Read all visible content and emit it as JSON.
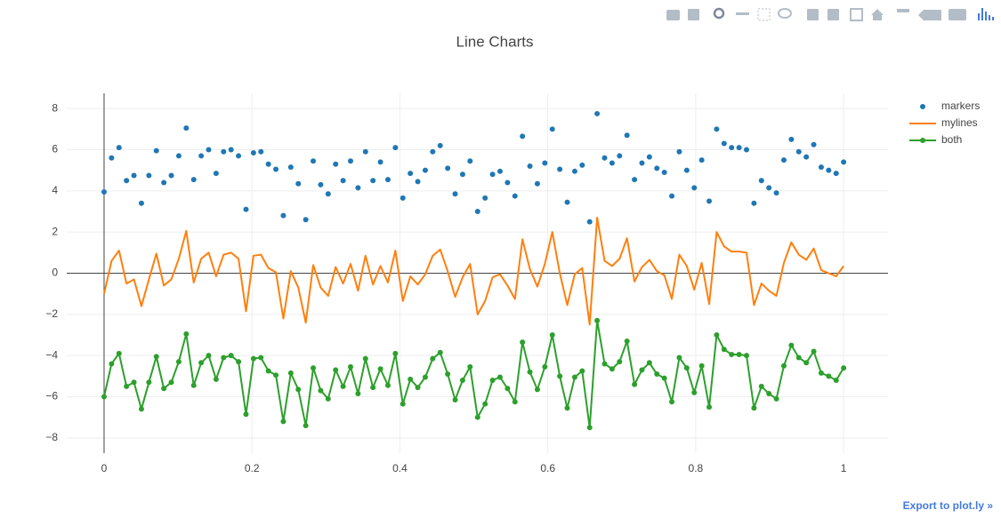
{
  "chart_data": {
    "type": "line",
    "title": "Line Charts",
    "x": [
      0,
      0.0101,
      0.0202,
      0.0303,
      0.0404,
      0.0505,
      0.0606,
      0.0707,
      0.0808,
      0.0909,
      0.101,
      0.1111,
      0.1212,
      0.1313,
      0.1414,
      0.1515,
      0.1616,
      0.1717,
      0.1818,
      0.1919,
      0.202,
      0.2121,
      0.2222,
      0.2323,
      0.2424,
      0.2525,
      0.2626,
      0.2727,
      0.2828,
      0.2929,
      0.303,
      0.3131,
      0.3232,
      0.3333,
      0.3434,
      0.3535,
      0.3636,
      0.3737,
      0.3838,
      0.3939,
      0.404,
      0.4141,
      0.4242,
      0.4343,
      0.4444,
      0.4545,
      0.4646,
      0.4747,
      0.4848,
      0.4949,
      0.5051,
      0.5152,
      0.5253,
      0.5354,
      0.5455,
      0.5556,
      0.5657,
      0.5758,
      0.5859,
      0.596,
      0.6061,
      0.6162,
      0.6263,
      0.6364,
      0.6465,
      0.6566,
      0.6667,
      0.6768,
      0.6869,
      0.697,
      0.7071,
      0.7172,
      0.7273,
      0.7374,
      0.7475,
      0.7576,
      0.7677,
      0.7778,
      0.7879,
      0.798,
      0.8081,
      0.8182,
      0.8283,
      0.8384,
      0.8485,
      0.8586,
      0.8687,
      0.8788,
      0.8889,
      0.899,
      0.9091,
      0.9192,
      0.9293,
      0.9394,
      0.9495,
      0.9596,
      0.9697,
      0.9798,
      0.9899,
      1
    ],
    "series": [
      {
        "name": "markers",
        "mode": "markers",
        "color": "#1f77b4",
        "values": [
          3.95,
          5.6,
          6.1,
          4.5,
          4.75,
          3.4,
          4.75,
          5.95,
          4.4,
          4.75,
          5.7,
          7.05,
          4.55,
          5.7,
          6.0,
          4.85,
          5.9,
          6.0,
          5.7,
          3.1,
          5.85,
          5.9,
          5.3,
          5.05,
          2.8,
          5.15,
          4.35,
          2.6,
          5.45,
          4.3,
          3.85,
          5.3,
          4.5,
          5.45,
          4.15,
          5.9,
          4.5,
          5.4,
          4.55,
          6.1,
          3.65,
          4.85,
          4.45,
          5.0,
          5.9,
          6.2,
          5.1,
          3.85,
          4.8,
          5.45,
          3.0,
          3.65,
          4.8,
          4.95,
          4.4,
          3.75,
          6.65,
          5.2,
          4.35,
          5.35,
          7.0,
          5.05,
          3.45,
          4.95,
          5.25,
          2.5,
          7.75,
          5.6,
          5.35,
          5.7,
          6.7,
          4.55,
          5.35,
          5.65,
          5.1,
          4.9,
          3.75,
          5.9,
          5.0,
          4.15,
          5.5,
          3.5,
          7.0,
          6.3,
          6.1,
          6.1,
          6.0,
          3.4,
          4.5,
          4.15,
          3.9,
          5.5,
          6.5,
          5.9,
          5.65,
          6.25,
          5.15,
          5.0,
          4.85,
          5.4
        ]
      },
      {
        "name": "mylines",
        "mode": "lines",
        "color": "#ff7f0e",
        "values": [
          -1.0,
          0.6,
          1.1,
          -0.5,
          -0.3,
          -1.6,
          -0.3,
          0.95,
          -0.6,
          -0.3,
          0.7,
          2.05,
          -0.45,
          0.7,
          1.0,
          -0.15,
          0.9,
          1.0,
          0.7,
          -1.85,
          0.85,
          0.9,
          0.25,
          0.05,
          -2.2,
          0.1,
          -0.7,
          -2.4,
          0.4,
          -0.7,
          -1.1,
          0.3,
          -0.5,
          0.45,
          -0.85,
          0.85,
          -0.55,
          0.35,
          -0.45,
          1.1,
          -1.35,
          -0.15,
          -0.55,
          -0.05,
          0.85,
          1.15,
          0.1,
          -1.15,
          -0.2,
          0.45,
          -2.0,
          -1.35,
          -0.2,
          -0.05,
          -0.6,
          -1.25,
          1.65,
          0.2,
          -0.65,
          0.45,
          2.0,
          0.0,
          -1.55,
          -0.05,
          0.25,
          -2.5,
          2.7,
          0.6,
          0.35,
          0.7,
          1.7,
          -0.4,
          0.3,
          0.65,
          0.1,
          -0.1,
          -1.25,
          0.9,
          0.35,
          -0.8,
          0.5,
          -1.5,
          2.0,
          1.3,
          1.05,
          1.05,
          1.0,
          -1.55,
          -0.5,
          -0.85,
          -1.1,
          0.5,
          1.5,
          0.9,
          0.65,
          1.2,
          0.15,
          0.0,
          -0.15,
          0.35
        ]
      },
      {
        "name": "both",
        "mode": "lines+markers",
        "color": "#2ca02c",
        "values": [
          -6.0,
          -4.4,
          -3.9,
          -5.5,
          -5.3,
          -6.6,
          -5.3,
          -4.05,
          -5.6,
          -5.3,
          -4.3,
          -2.95,
          -5.45,
          -4.35,
          -4.0,
          -5.15,
          -4.1,
          -4.0,
          -4.3,
          -6.85,
          -4.15,
          -4.1,
          -4.75,
          -4.95,
          -7.2,
          -4.85,
          -5.65,
          -7.4,
          -4.6,
          -5.7,
          -6.1,
          -4.7,
          -5.5,
          -4.55,
          -5.85,
          -4.15,
          -5.55,
          -4.65,
          -5.45,
          -3.9,
          -6.35,
          -5.15,
          -5.55,
          -5.05,
          -4.15,
          -3.85,
          -4.9,
          -6.15,
          -5.2,
          -4.55,
          -7.0,
          -6.35,
          -5.2,
          -5.05,
          -5.6,
          -6.25,
          -3.35,
          -4.8,
          -5.65,
          -4.55,
          -3.0,
          -5.0,
          -6.55,
          -5.05,
          -4.75,
          -7.5,
          -2.3,
          -4.4,
          -4.65,
          -4.3,
          -3.3,
          -5.4,
          -4.7,
          -4.35,
          -4.9,
          -5.1,
          -6.25,
          -4.1,
          -4.6,
          -5.8,
          -4.5,
          -6.5,
          -3.0,
          -3.7,
          -3.95,
          -3.95,
          -4.0,
          -6.55,
          -5.5,
          -5.85,
          -6.1,
          -4.5,
          -3.5,
          -4.1,
          -4.35,
          -3.8,
          -4.85,
          -5.0,
          -5.2,
          -4.6
        ]
      }
    ],
    "xlim": [
      -0.0505,
      1.06
    ],
    "ylim": [
      -8.74,
      8.74
    ],
    "xticks": [
      0,
      0.2,
      0.4,
      0.6,
      0.8,
      1
    ],
    "yticks": [
      {
        "value": -8,
        "label": "−8"
      },
      {
        "value": -6,
        "label": "−6"
      },
      {
        "value": -4,
        "label": "−4"
      },
      {
        "value": -2,
        "label": "−2"
      },
      0,
      2,
      4,
      6,
      8
    ],
    "grid": true,
    "zeroline": true,
    "legend": "top-right"
  },
  "export_link": "Export to plot.ly »"
}
